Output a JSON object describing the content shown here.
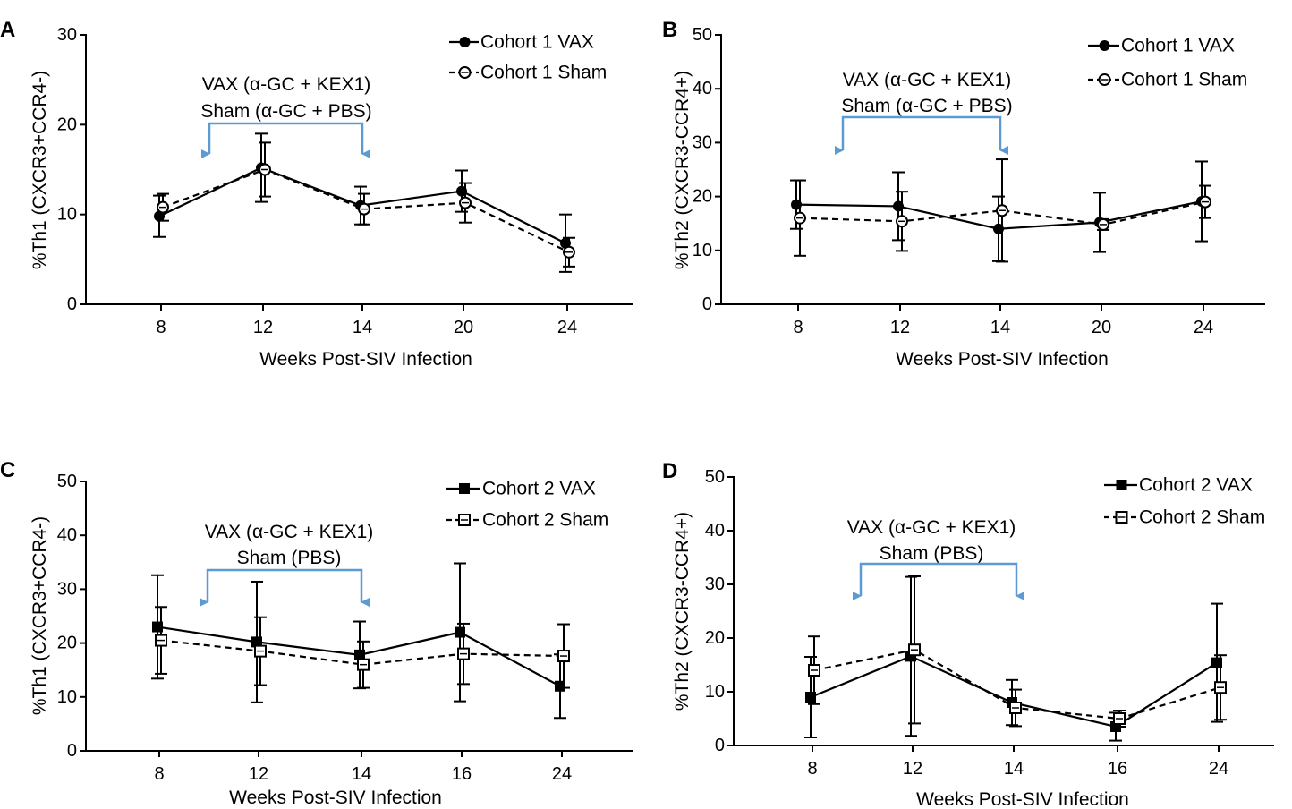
{
  "chart_data": [
    {
      "panel": "A",
      "type": "line",
      "ylabel": "%Th1 (CXCR3+CCR4-)",
      "xlabel": "Weeks Post-SIV Infection",
      "categories": [
        "8",
        "12",
        "14",
        "20",
        "24"
      ],
      "ylim": [
        0,
        30
      ],
      "yticks": [
        0,
        10,
        20,
        30
      ],
      "annotation": [
        "VAX (α-GC + KEX1)",
        "Sham (α-GC + PBS)"
      ],
      "annotation_span": [
        "10",
        "14"
      ],
      "series": [
        {
          "name": "Cohort 1 VAX",
          "marker": "filled-circle",
          "line": "solid",
          "values": [
            9.8,
            15.2,
            11.0,
            12.6,
            6.8
          ],
          "err": [
            2.3,
            3.8,
            2.1,
            2.3,
            3.2
          ]
        },
        {
          "name": "Cohort 1 Sham",
          "marker": "open-circle",
          "line": "dashed",
          "values": [
            10.8,
            15.0,
            10.6,
            11.3,
            5.8
          ],
          "err": [
            1.5,
            3.0,
            1.7,
            2.2,
            1.6
          ]
        }
      ]
    },
    {
      "panel": "B",
      "type": "line",
      "ylabel": "%Th2 (CXCR3-CCR4+)",
      "xlabel": "Weeks Post-SIV Infection",
      "categories": [
        "8",
        "12",
        "14",
        "20",
        "24"
      ],
      "ylim": [
        0,
        50
      ],
      "yticks": [
        0,
        10,
        20,
        30,
        40,
        50
      ],
      "annotation": [
        "VAX (α-GC + KEX1)",
        "Sham (α-GC + PBS)"
      ],
      "annotation_span": [
        "10",
        "14"
      ],
      "series": [
        {
          "name": "Cohort 1 VAX",
          "marker": "filled-circle",
          "line": "solid",
          "values": [
            18.5,
            18.2,
            14.0,
            15.2,
            19.1
          ],
          "err": [
            4.5,
            6.3,
            6.0,
            5.5,
            7.4
          ]
        },
        {
          "name": "Cohort 1 Sham",
          "marker": "open-circle",
          "line": "dashed",
          "values": [
            16.0,
            15.4,
            17.4,
            14.8,
            19.0
          ],
          "err": [
            7.0,
            5.5,
            9.5,
            1.0,
            3.0
          ]
        }
      ]
    },
    {
      "panel": "C",
      "type": "line",
      "ylabel": "%Th1 (CXCR3+CCR4-)",
      "xlabel": "Weeks Post-SIV Infection",
      "categories": [
        "8",
        "12",
        "14",
        "16",
        "24"
      ],
      "ylim": [
        0,
        50
      ],
      "yticks": [
        0,
        10,
        20,
        30,
        40,
        50
      ],
      "annotation": [
        "VAX (α-GC + KEX1)",
        "Sham (PBS)"
      ],
      "annotation_span": [
        "10",
        "14"
      ],
      "series": [
        {
          "name": "Cohort 2 VAX",
          "marker": "filled-square",
          "line": "solid",
          "values": [
            23.0,
            20.2,
            17.8,
            22.0,
            12.0
          ],
          "err": [
            9.6,
            11.2,
            6.2,
            12.8,
            5.9
          ]
        },
        {
          "name": "Cohort 2 Sham",
          "marker": "open-square",
          "line": "dashed",
          "values": [
            20.5,
            18.5,
            16.0,
            18.0,
            17.6
          ],
          "err": [
            6.2,
            6.3,
            4.3,
            5.6,
            5.9
          ]
        }
      ]
    },
    {
      "panel": "D",
      "type": "line",
      "ylabel": "%Th2 (CXCR3-CCR4+)",
      "xlabel": "Weeks Post-SIV Infection",
      "categories": [
        "8",
        "12",
        "14",
        "16",
        "24"
      ],
      "ylim": [
        0,
        50
      ],
      "yticks": [
        0,
        10,
        20,
        30,
        40,
        50
      ],
      "annotation": [
        "VAX (α-GC + KEX1)",
        "Sham (PBS)"
      ],
      "annotation_span": [
        "10",
        "14"
      ],
      "series": [
        {
          "name": "Cohort 2 VAX",
          "marker": "filled-square",
          "line": "solid",
          "values": [
            9.0,
            16.6,
            8.0,
            3.5,
            15.4
          ],
          "err": [
            7.5,
            14.8,
            4.2,
            2.6,
            11.0
          ]
        },
        {
          "name": "Cohort 2 Sham",
          "marker": "open-square",
          "line": "dashed",
          "values": [
            14.0,
            17.8,
            7.0,
            5.0,
            10.8
          ],
          "err": [
            6.3,
            13.7,
            3.4,
            1.5,
            6.0
          ]
        }
      ]
    }
  ],
  "colors": {
    "ink": "#000000",
    "bracket": "#5b9bd5"
  }
}
